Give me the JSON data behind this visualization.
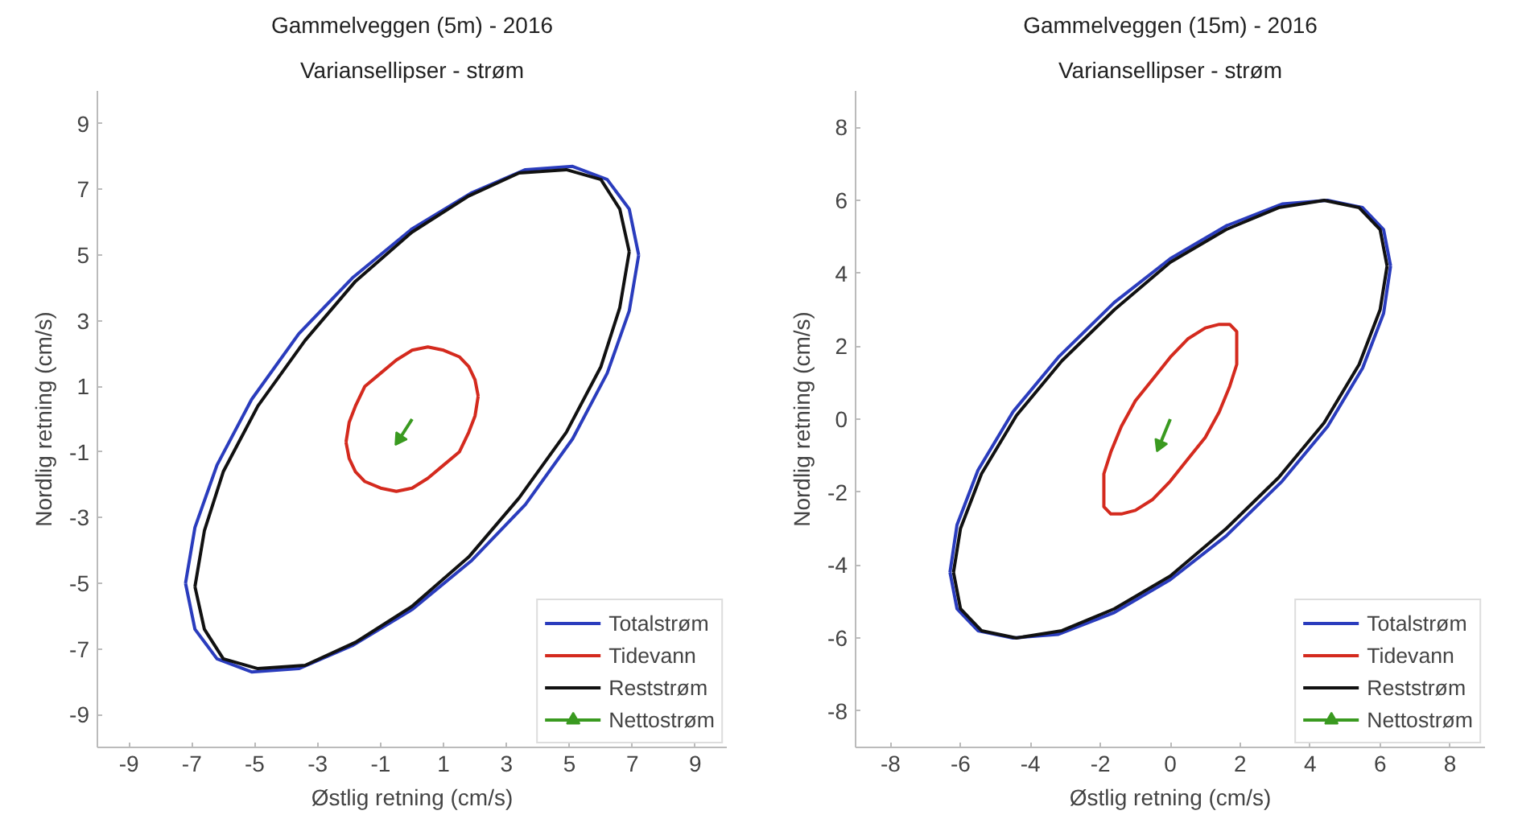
{
  "chart_data": [
    {
      "type": "line",
      "title": "Gammelveggen (5m) - 2016",
      "subtitle": "Variansellipser - strøm",
      "xlabel": "Østlig retning (cm/s)",
      "ylabel": "Nordlig retning (cm/s)",
      "xlim": [
        -10,
        10
      ],
      "ylim": [
        -10,
        10
      ],
      "xticks": [
        -9,
        -7,
        -5,
        -3,
        -1,
        1,
        3,
        5,
        7,
        9
      ],
      "yticks": [
        -9,
        -7,
        -5,
        -3,
        -1,
        1,
        3,
        5,
        7,
        9
      ],
      "grid": false,
      "legend": "bottom right",
      "series": [
        {
          "name": "Totalstrøm",
          "color": "#2a3cbd",
          "x": [
            7.2,
            6.9,
            6.2,
            5.1,
            3.6,
            1.9,
            0,
            -1.9,
            -3.6,
            -5.1,
            -6.2,
            -6.9,
            -7.2,
            null,
            -7.2,
            -6.9,
            -6.2,
            -5.1,
            -3.6,
            -1.9,
            0,
            1.9,
            3.6,
            5.1,
            6.2,
            6.9,
            7.2
          ],
          "values": [
            5.0,
            6.4,
            7.3,
            7.7,
            7.6,
            6.9,
            5.8,
            4.3,
            2.6,
            0.6,
            -1.4,
            -3.3,
            -5.0,
            null,
            -5.0,
            -6.4,
            -7.3,
            -7.7,
            -7.6,
            -6.9,
            -5.8,
            -4.3,
            -2.6,
            -0.6,
            1.4,
            3.3,
            5.0
          ]
        },
        {
          "name": "Tidevann",
          "color": "#d42a1e",
          "x": [
            2.1,
            2.0,
            1.8,
            1.5,
            1.0,
            0.5,
            0,
            -0.5,
            -1.0,
            -1.5,
            -1.8,
            -2.0,
            -2.1,
            null,
            -2.1,
            -2.0,
            -1.8,
            -1.5,
            -1.0,
            -0.5,
            0,
            0.5,
            1.0,
            1.5,
            1.8,
            2.0,
            2.1
          ],
          "values": [
            0.7,
            1.2,
            1.6,
            1.9,
            2.1,
            2.2,
            2.1,
            1.8,
            1.4,
            1.0,
            0.4,
            -0.1,
            -0.7,
            null,
            -0.7,
            -1.2,
            -1.6,
            -1.9,
            -2.1,
            -2.2,
            -2.1,
            -1.8,
            -1.4,
            -1.0,
            -0.4,
            0.1,
            0.7
          ]
        },
        {
          "name": "Reststrøm",
          "color": "#111111",
          "x": [
            6.9,
            6.6,
            6.0,
            4.9,
            3.4,
            1.8,
            0,
            -1.8,
            -3.4,
            -4.9,
            -6.0,
            -6.6,
            -6.9,
            null,
            -6.9,
            -6.6,
            -6.0,
            -4.9,
            -3.4,
            -1.8,
            0,
            1.8,
            3.4,
            4.9,
            6.0,
            6.6,
            6.9
          ],
          "values": [
            5.1,
            6.4,
            7.3,
            7.6,
            7.5,
            6.8,
            5.7,
            4.2,
            2.4,
            0.4,
            -1.6,
            -3.4,
            -5.1,
            null,
            -5.1,
            -6.4,
            -7.3,
            -7.6,
            -7.5,
            -6.8,
            -5.7,
            -4.2,
            -2.4,
            -0.4,
            1.6,
            3.4,
            5.1
          ]
        },
        {
          "name": "Nettostrøm",
          "color": "#3a9a20",
          "marker": "triangle",
          "x": [
            0,
            -0.4
          ],
          "values": [
            0,
            -0.6
          ]
        }
      ]
    },
    {
      "type": "line",
      "title": "Gammelveggen (15m) - 2016",
      "subtitle": "Variansellipser - strøm",
      "xlabel": "Østlig retning (cm/s)",
      "ylabel": "Nordlig retning (cm/s)",
      "xlim": [
        -9,
        9
      ],
      "ylim": [
        -9,
        9
      ],
      "xticks": [
        -8,
        -6,
        -4,
        -2,
        0,
        2,
        4,
        6,
        8
      ],
      "yticks": [
        -8,
        -6,
        -4,
        -2,
        0,
        2,
        4,
        6,
        8
      ],
      "grid": false,
      "legend": "bottom right",
      "series": [
        {
          "name": "Totalstrøm",
          "color": "#2a3cbd",
          "x": [
            6.3,
            6.1,
            5.5,
            4.5,
            3.2,
            1.6,
            0,
            -1.6,
            -3.2,
            -4.5,
            -5.5,
            -6.1,
            -6.3,
            null,
            -6.3,
            -6.1,
            -5.5,
            -4.5,
            -3.2,
            -1.6,
            0,
            1.6,
            3.2,
            4.5,
            5.5,
            6.1,
            6.3
          ],
          "values": [
            4.2,
            5.2,
            5.8,
            6.0,
            5.9,
            5.3,
            4.4,
            3.2,
            1.7,
            0.2,
            -1.4,
            -2.9,
            -4.2,
            null,
            -4.2,
            -5.2,
            -5.8,
            -6.0,
            -5.9,
            -5.3,
            -4.4,
            -3.2,
            -1.7,
            -0.2,
            1.4,
            2.9,
            4.2
          ]
        },
        {
          "name": "Tidevann",
          "color": "#d42a1e",
          "x": [
            1.9,
            1.9,
            1.7,
            1.4,
            1.0,
            0.5,
            0,
            -0.5,
            -1.0,
            -1.4,
            -1.7,
            -1.9,
            -1.9,
            null,
            -1.9,
            -1.9,
            -1.7,
            -1.4,
            -1.0,
            -0.5,
            0,
            0.5,
            1.0,
            1.4,
            1.7,
            1.9,
            1.9
          ],
          "values": [
            2.0,
            2.4,
            2.6,
            2.6,
            2.5,
            2.2,
            1.7,
            1.1,
            0.5,
            -0.2,
            -0.9,
            -1.5,
            -2.0,
            null,
            -2.0,
            -2.4,
            -2.6,
            -2.6,
            -2.5,
            -2.2,
            -1.7,
            -1.1,
            -0.5,
            0.2,
            0.9,
            1.5,
            2.0
          ]
        },
        {
          "name": "Reststrøm",
          "color": "#111111",
          "x": [
            6.2,
            6.0,
            5.4,
            4.4,
            3.1,
            1.6,
            0,
            -1.6,
            -3.1,
            -4.4,
            -5.4,
            -6.0,
            -6.2,
            null,
            -6.2,
            -6.0,
            -5.4,
            -4.4,
            -3.1,
            -1.6,
            0,
            1.6,
            3.1,
            4.4,
            5.4,
            6.0,
            6.2
          ],
          "values": [
            4.2,
            5.2,
            5.8,
            6.0,
            5.8,
            5.2,
            4.3,
            3.0,
            1.6,
            0.1,
            -1.5,
            -3.0,
            -4.2,
            null,
            -4.2,
            -5.2,
            -5.8,
            -6.0,
            -5.8,
            -5.2,
            -4.3,
            -3.0,
            -1.6,
            -0.1,
            1.5,
            3.0,
            4.2
          ]
        },
        {
          "name": "Nettostrøm",
          "color": "#3a9a20",
          "marker": "triangle",
          "x": [
            0,
            -0.3
          ],
          "values": [
            0,
            -0.7
          ]
        }
      ]
    }
  ]
}
